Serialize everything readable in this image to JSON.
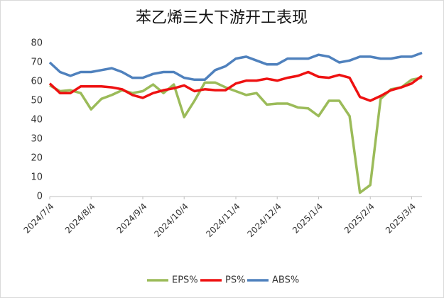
{
  "chart_data": {
    "type": "line",
    "title": "苯乙烯三大下游开工表现",
    "categories": [
      "2024/7/4",
      null,
      null,
      null,
      "2024/8/4",
      null,
      null,
      null,
      null,
      "2024/9/4",
      null,
      null,
      null,
      "2024/10/4",
      null,
      null,
      null,
      null,
      "2024/11/4",
      null,
      null,
      null,
      "2024/12/4",
      null,
      null,
      null,
      "2025/1/4",
      null,
      null,
      null,
      null,
      "2025/2/4",
      null,
      null,
      null,
      "2025/3/4",
      null
    ],
    "series": [
      {
        "name": "EPS%",
        "color": "#9bbb59",
        "values": [
          58,
          55,
          55.5,
          54,
          45.5,
          51,
          53,
          55.5,
          54,
          55,
          58.5,
          54,
          58.5,
          41.5,
          50,
          59.5,
          59.5,
          57,
          55,
          53,
          54,
          48,
          48.5,
          48.5,
          46.5,
          46,
          42,
          50,
          50,
          42,
          2,
          6,
          51,
          56,
          57,
          61,
          62
        ]
      },
      {
        "name": "PS%",
        "color": "#ee1111",
        "values": [
          59,
          54,
          54,
          57.5,
          57.5,
          57.5,
          57,
          56,
          53,
          51.5,
          54,
          55.5,
          56.5,
          58,
          55,
          56,
          55.5,
          55.5,
          59,
          60.5,
          60.5,
          61.5,
          60.5,
          62,
          63,
          65,
          62.5,
          62,
          63.5,
          62,
          52,
          50,
          52.5,
          55.5,
          57,
          59,
          63
        ]
      },
      {
        "name": "ABS%",
        "color": "#4f81bd",
        "values": [
          70,
          65,
          63,
          65,
          65,
          66,
          67,
          65,
          62,
          62,
          64,
          65,
          65,
          62,
          61,
          61,
          66,
          68,
          72,
          73,
          71,
          69,
          69,
          72,
          72,
          72,
          74,
          73,
          70,
          71,
          73,
          73,
          72,
          72,
          73,
          73,
          75
        ]
      }
    ],
    "ylim": [
      0,
      80
    ],
    "yticks": [
      0,
      10,
      20,
      30,
      40,
      50,
      60,
      70,
      80
    ],
    "grid": false,
    "legend": "bottom"
  }
}
